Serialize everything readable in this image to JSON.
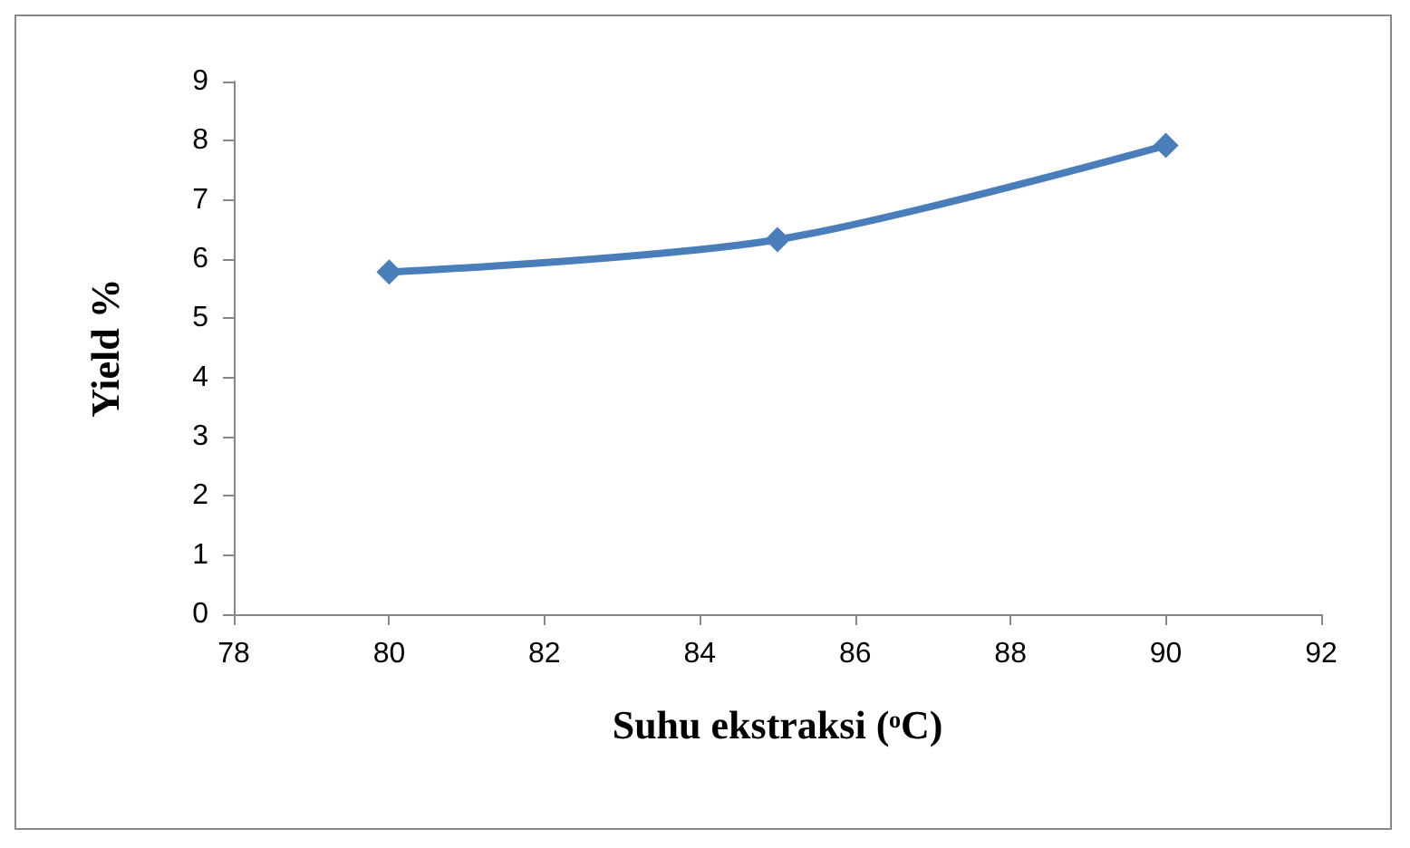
{
  "chart_data": {
    "type": "line",
    "xlabel": "Suhu ekstraksi (ᵒC)",
    "ylabel": "Yield %",
    "x": [
      80,
      85,
      90
    ],
    "series": [
      {
        "color": "#4a7ebb",
        "values": [
          5.78,
          6.33,
          7.92
        ]
      }
    ],
    "xlim": [
      78,
      92
    ],
    "xticks": [
      78,
      80,
      82,
      84,
      86,
      88,
      90,
      92
    ],
    "ylim": [
      0,
      9
    ],
    "yticks": [
      0,
      1,
      2,
      3,
      4,
      5,
      6,
      7,
      8,
      9
    ],
    "grid": false,
    "marker": "diamond",
    "line_style": "solid"
  }
}
